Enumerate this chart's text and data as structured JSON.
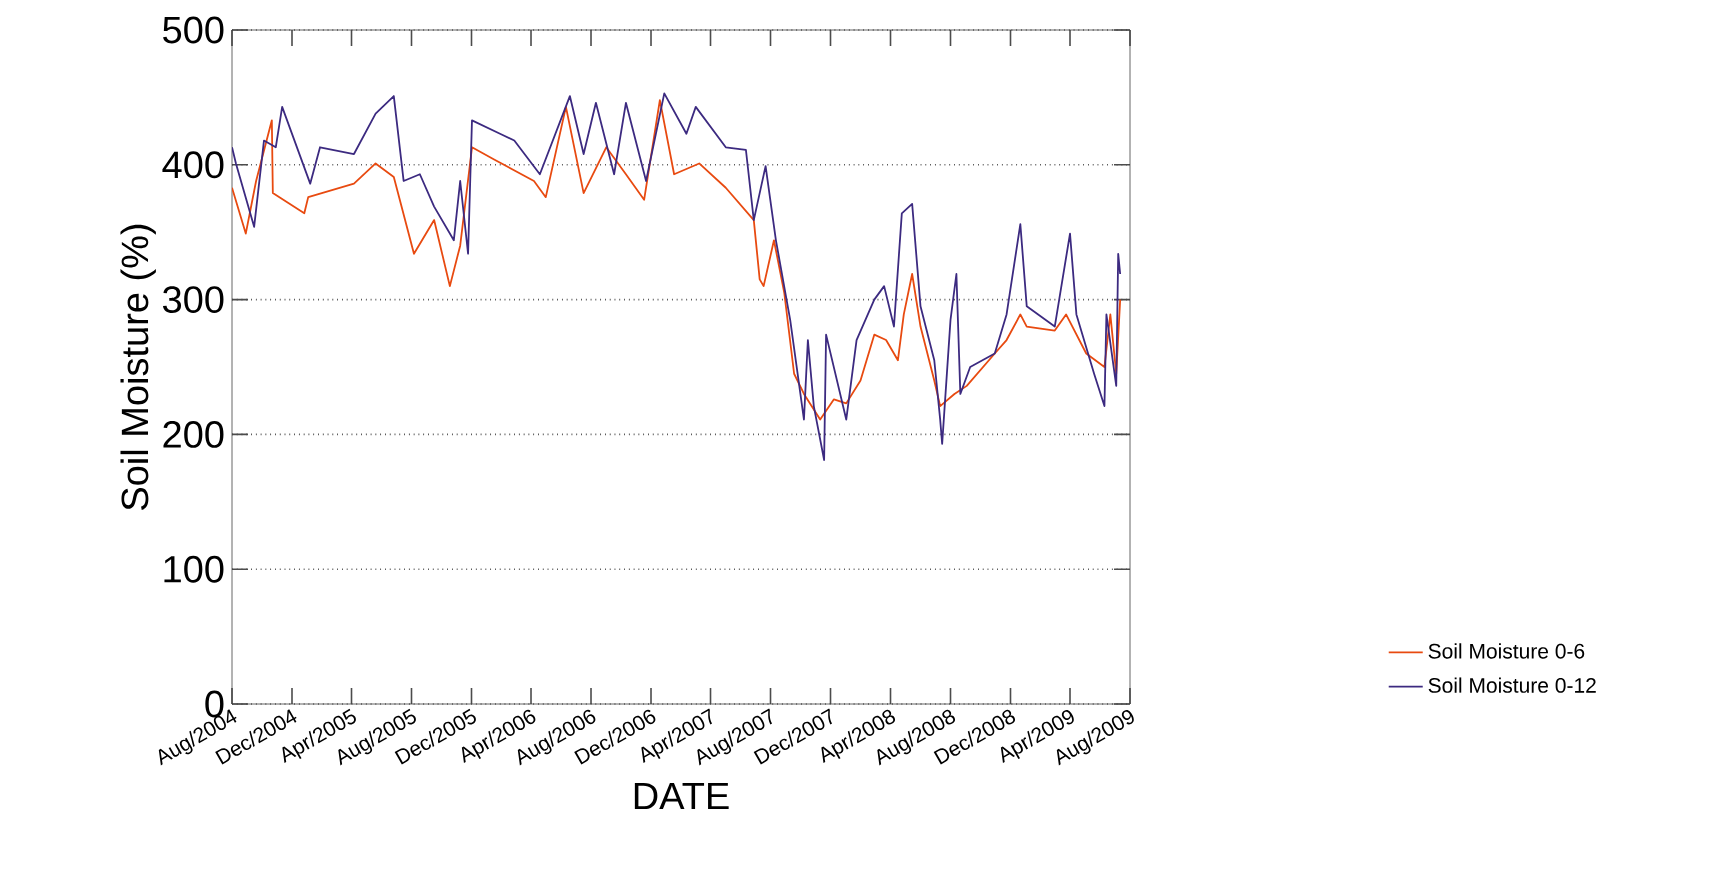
{
  "chart_data": {
    "type": "line",
    "xlabel": "DATE",
    "ylabel": "Soil Moisture (%)",
    "xlim": [
      "2004-08-01",
      "2009-08-01"
    ],
    "ylim": [
      0,
      500
    ],
    "xticks": [
      {
        "value": "2004-08-01",
        "label": "Aug/2004"
      },
      {
        "value": "2004-12-01",
        "label": "Dec/2004"
      },
      {
        "value": "2005-04-01",
        "label": "Apr/2005"
      },
      {
        "value": "2005-08-01",
        "label": "Aug/2005"
      },
      {
        "value": "2005-12-01",
        "label": "Dec/2005"
      },
      {
        "value": "2006-04-01",
        "label": "Apr/2006"
      },
      {
        "value": "2006-08-01",
        "label": "Aug/2006"
      },
      {
        "value": "2006-12-01",
        "label": "Dec/2006"
      },
      {
        "value": "2007-04-01",
        "label": "Apr/2007"
      },
      {
        "value": "2007-08-01",
        "label": "Aug/2007"
      },
      {
        "value": "2007-12-01",
        "label": "Dec/2007"
      },
      {
        "value": "2008-04-01",
        "label": "Apr/2008"
      },
      {
        "value": "2008-08-01",
        "label": "Aug/2008"
      },
      {
        "value": "2008-12-01",
        "label": "Dec/2008"
      },
      {
        "value": "2009-04-01",
        "label": "Apr/2009"
      },
      {
        "value": "2009-08-01",
        "label": "Aug/2009"
      }
    ],
    "yticks": [
      0,
      100,
      200,
      300,
      400,
      500
    ],
    "grid": "y",
    "legend": "bottom right",
    "marker": "none",
    "line_style": "solid",
    "series": [
      {
        "name": "Soil Moisture 0-6",
        "color": "#e84a10",
        "x": [
          "2004-08-01",
          "2004-08-29",
          "2004-09-19",
          "2004-10-21",
          "2004-10-23",
          "2004-12-26",
          "2005-01-03",
          "2005-04-06",
          "2005-05-20",
          "2005-06-26",
          "2005-08-06",
          "2005-09-16",
          "2005-10-18",
          "2005-11-08",
          "2005-12-02",
          "2006-01-16",
          "2006-04-07",
          "2006-05-01",
          "2006-06-11",
          "2006-07-17",
          "2006-09-01",
          "2006-10-11",
          "2006-11-17",
          "2006-12-19",
          "2007-01-17",
          "2007-03-09",
          "2007-05-02",
          "2007-06-28",
          "2007-07-10",
          "2007-07-18",
          "2007-08-08",
          "2007-08-29",
          "2007-09-18",
          "2007-10-08",
          "2007-11-10",
          "2007-12-08",
          "2008-01-02",
          "2008-01-31",
          "2008-02-28",
          "2008-03-23",
          "2008-04-16",
          "2008-04-28",
          "2008-05-15",
          "2008-06-01",
          "2008-06-29",
          "2008-07-11",
          "2008-08-09",
          "2008-09-03",
          "2008-10-30",
          "2008-11-23",
          "2008-12-21",
          "2009-01-03",
          "2009-03-01",
          "2009-03-24",
          "2009-05-04",
          "2009-06-10",
          "2009-06-22",
          "2009-07-04",
          "2009-07-12"
        ],
        "values": [
          383,
          349,
          388,
          433,
          379,
          364,
          376,
          386,
          401,
          391,
          334,
          359,
          310,
          340,
          413,
          404,
          388,
          376,
          443,
          379,
          413,
          393,
          374,
          448,
          393,
          401,
          383,
          359,
          315,
          310,
          344,
          305,
          245,
          230,
          211,
          226,
          223,
          240,
          274,
          270,
          255,
          289,
          319,
          280,
          240,
          221,
          230,
          236,
          260,
          270,
          289,
          280,
          277,
          289,
          260,
          250,
          289,
          245,
          300
        ]
      },
      {
        "name": "Soil Moisture 0-12",
        "color": "#3c2a80",
        "x": [
          "2004-08-01",
          "2004-08-09",
          "2004-09-15",
          "2004-10-05",
          "2004-10-29",
          "2004-11-11",
          "2005-01-07",
          "2005-01-27",
          "2005-04-06",
          "2005-05-20",
          "2005-06-26",
          "2005-07-16",
          "2005-08-18",
          "2005-09-16",
          "2005-10-26",
          "2005-11-08",
          "2005-11-24",
          "2005-12-02",
          "2006-01-28",
          "2006-02-26",
          "2006-04-19",
          "2006-06-19",
          "2006-07-17",
          "2006-08-11",
          "2006-09-17",
          "2006-10-11",
          "2006-11-21",
          "2006-12-28",
          "2007-02-11",
          "2007-03-02",
          "2007-05-02",
          "2007-06-12",
          "2007-06-28",
          "2007-07-22",
          "2007-08-12",
          "2007-09-10",
          "2007-10-08",
          "2007-10-16",
          "2007-10-28",
          "2007-11-18",
          "2007-11-22",
          "2008-01-02",
          "2008-01-23",
          "2008-02-28",
          "2008-03-19",
          "2008-04-08",
          "2008-04-24",
          "2008-05-15",
          "2008-06-01",
          "2008-06-29",
          "2008-07-11",
          "2008-07-15",
          "2008-08-01",
          "2008-08-13",
          "2008-08-21",
          "2008-09-10",
          "2008-10-30",
          "2008-11-23",
          "2008-12-21",
          "2009-01-03",
          "2009-03-01",
          "2009-04-01",
          "2009-04-14",
          "2009-05-20",
          "2009-06-10",
          "2009-06-14",
          "2009-07-04",
          "2009-07-08",
          "2009-07-12"
        ],
        "values": [
          413,
          401,
          354,
          418,
          413,
          443,
          386,
          413,
          408,
          438,
          451,
          388,
          393,
          369,
          344,
          388,
          334,
          433,
          423,
          418,
          393,
          451,
          408,
          446,
          393,
          446,
          388,
          453,
          423,
          443,
          413,
          411,
          359,
          399,
          344,
          285,
          211,
          270,
          221,
          181,
          274,
          211,
          270,
          300,
          310,
          280,
          364,
          371,
          295,
          255,
          211,
          193,
          285,
          319,
          230,
          250,
          260,
          289,
          356,
          295,
          280,
          349,
          289,
          245,
          221,
          289,
          236,
          334,
          319
        ]
      }
    ]
  }
}
